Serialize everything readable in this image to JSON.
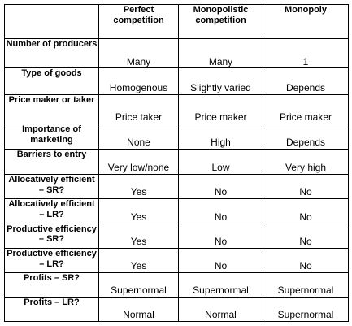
{
  "columns": [
    "",
    "Perfect competition",
    "Monopolistic competition",
    "Monopoly"
  ],
  "rows": [
    {
      "label": "Number of producers",
      "values": [
        "Many",
        "Many",
        "1"
      ]
    },
    {
      "label": "Type of goods",
      "values": [
        "Homogenous",
        "Slightly varied",
        "Depends"
      ]
    },
    {
      "label": "Price maker or taker",
      "values": [
        "Price taker",
        "Price maker",
        "Price maker"
      ]
    },
    {
      "label": "Importance of marketing",
      "values": [
        "None",
        "High",
        "Depends"
      ]
    },
    {
      "label": "Barriers to entry",
      "values": [
        "Very low/none",
        "Low",
        "Very high"
      ]
    },
    {
      "label": "Allocatively efficient – SR?",
      "values": [
        "Yes",
        "No",
        "No"
      ]
    },
    {
      "label": "Allocatively efficient – LR?",
      "values": [
        "Yes",
        "No",
        "No"
      ]
    },
    {
      "label": "Productive efficiency – SR?",
      "values": [
        "Yes",
        "No",
        "No"
      ]
    },
    {
      "label": "Productive efficiency – LR?",
      "values": [
        "Yes",
        "No",
        "No"
      ]
    },
    {
      "label": "Profits – SR?",
      "values": [
        "Supernormal",
        "Supernormal",
        "Supernormal"
      ]
    },
    {
      "label": "Profits – LR?",
      "values": [
        "Normal",
        "Normal",
        "Supernormal"
      ]
    }
  ]
}
